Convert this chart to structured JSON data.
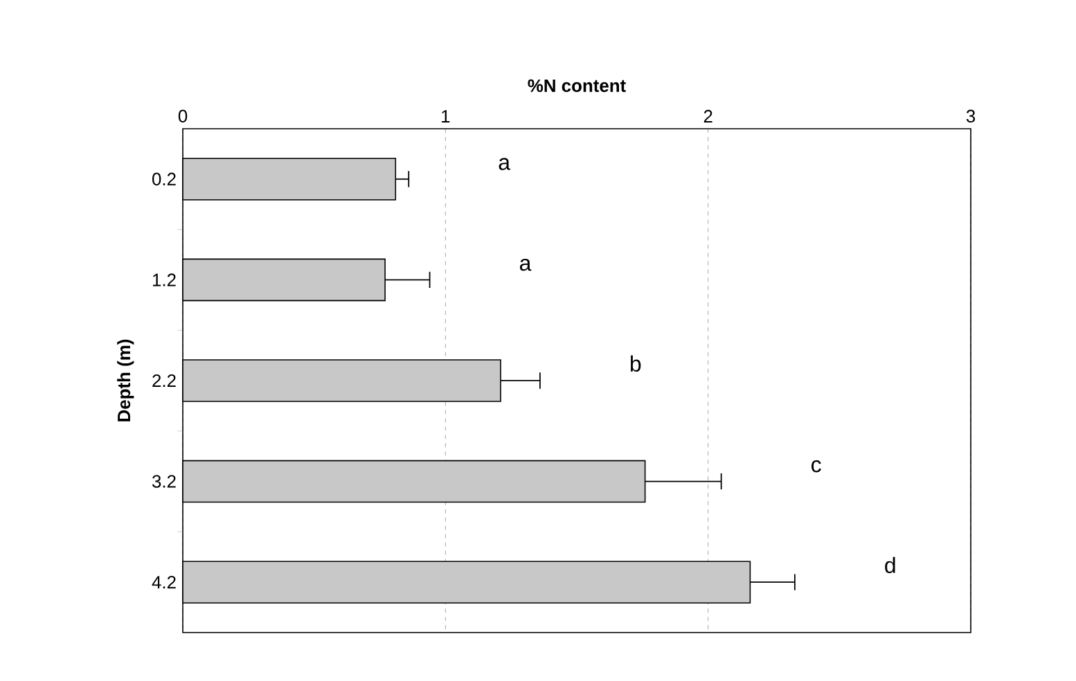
{
  "chart_data": {
    "type": "bar",
    "orientation": "horizontal",
    "xlabel": "%N content",
    "ylabel": "Depth (m)",
    "categories": [
      "0.2",
      "1.2",
      "2.2",
      "3.2",
      "4.2"
    ],
    "values": [
      0.81,
      0.77,
      1.21,
      1.76,
      2.16
    ],
    "errors": [
      [
        0.81,
        0.86
      ],
      [
        0.77,
        0.94
      ],
      [
        1.21,
        1.36
      ],
      [
        1.76,
        2.05
      ],
      [
        2.16,
        2.33
      ]
    ],
    "color": "#c8c8c8",
    "xlim": [
      0,
      3
    ],
    "xticks": [
      0,
      1,
      2,
      3
    ],
    "grid": "x",
    "annotations": [
      "a",
      "a",
      "b",
      "c",
      "d"
    ]
  }
}
